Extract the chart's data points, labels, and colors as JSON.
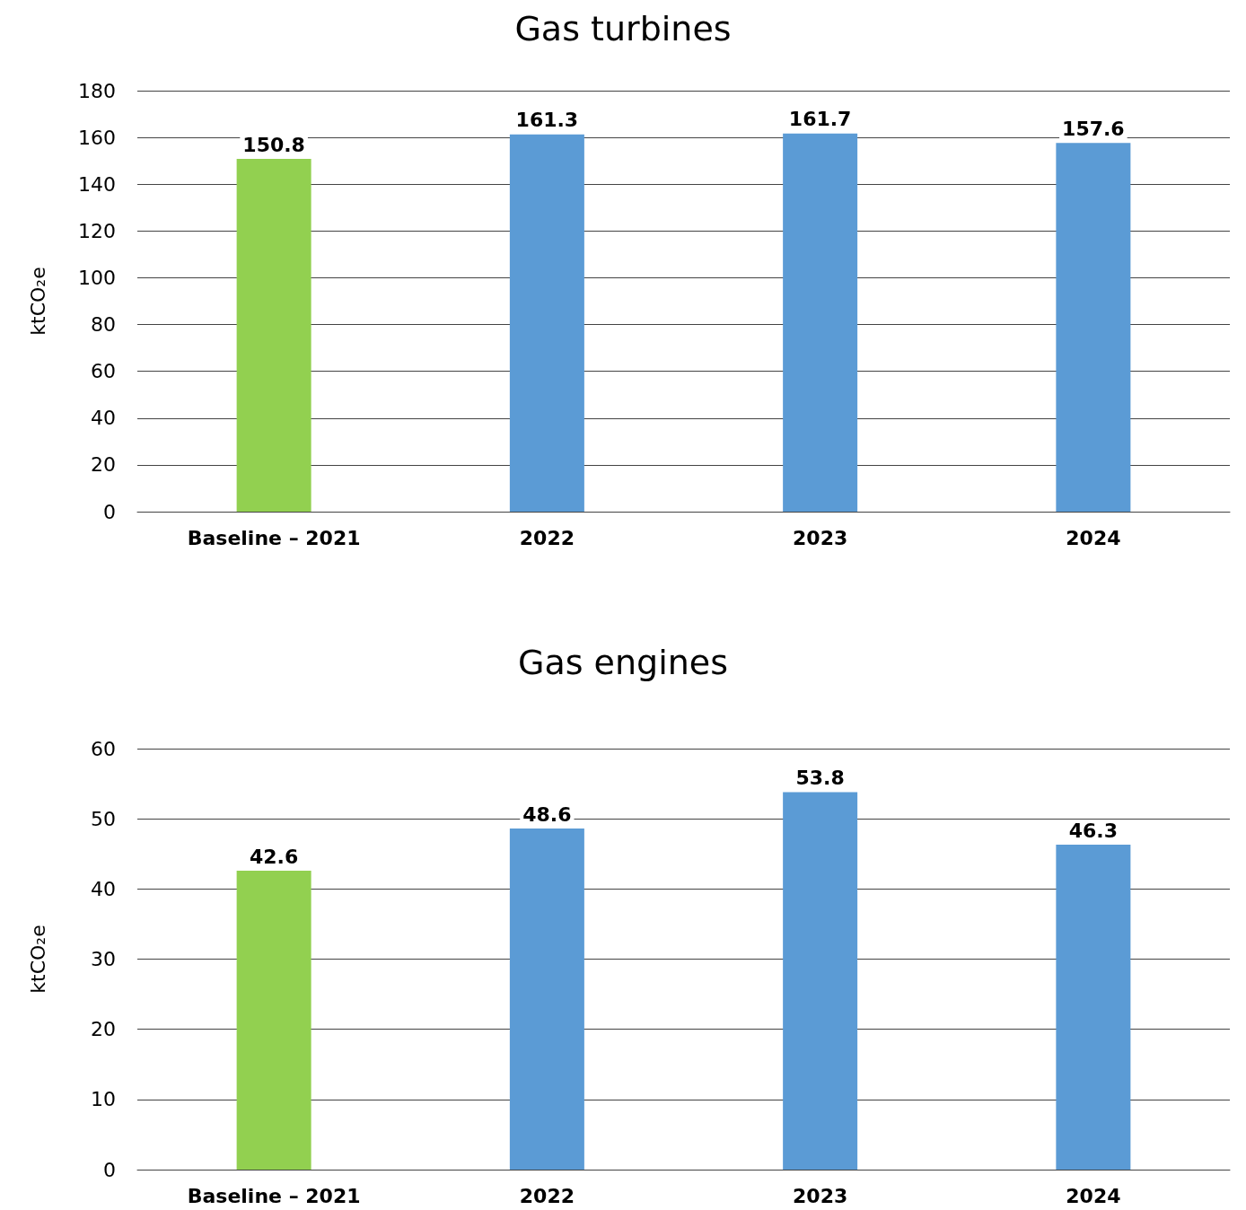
{
  "chart_data": [
    {
      "type": "bar",
      "title": "Gas turbines",
      "ylabel": "ktCO₂e",
      "categories": [
        "Baseline – 2021",
        "2022",
        "2023",
        "2024"
      ],
      "values": [
        150.8,
        161.3,
        161.7,
        157.6
      ],
      "colors": [
        "#92d050",
        "#5b9bd5",
        "#5b9bd5",
        "#5b9bd5"
      ],
      "ylim": [
        0,
        180
      ],
      "yticks": [
        0,
        20,
        40,
        60,
        80,
        100,
        120,
        140,
        160,
        180
      ],
      "grid": "y",
      "data_labels": true
    },
    {
      "type": "bar",
      "title": "Gas engines",
      "ylabel": "ktCO₂e",
      "categories": [
        "Baseline – 2021",
        "2022",
        "2023",
        "2024"
      ],
      "values": [
        42.6,
        48.6,
        53.8,
        46.3
      ],
      "colors": [
        "#92d050",
        "#5b9bd5",
        "#5b9bd5",
        "#5b9bd5"
      ],
      "ylim": [
        0,
        60
      ],
      "yticks": [
        0,
        10,
        20,
        30,
        40,
        50,
        60
      ],
      "grid": "y",
      "data_labels": true
    }
  ]
}
